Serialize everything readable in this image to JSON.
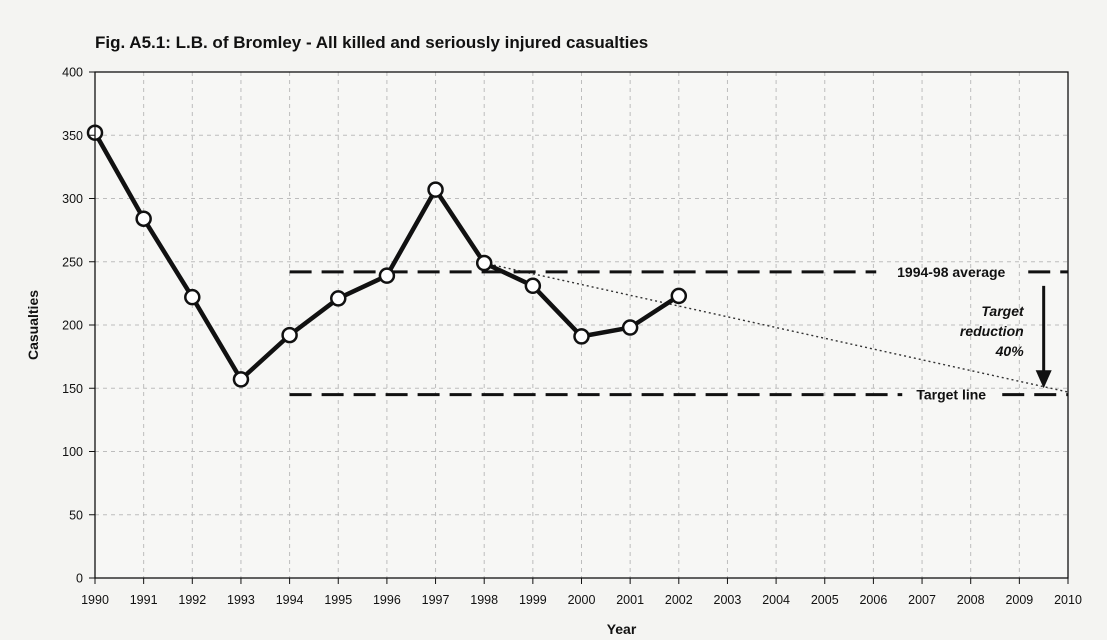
{
  "chart_data": {
    "type": "line",
    "title": "Fig. A5.1: L.B. of Bromley - All killed and seriously injured casualties",
    "xlabel": "Year",
    "ylabel": "Casualties",
    "x": [
      1990,
      1991,
      1992,
      1993,
      1994,
      1995,
      1996,
      1997,
      1998,
      1999,
      2000,
      2001,
      2002,
      2003,
      2004,
      2005,
      2006,
      2007,
      2008,
      2009,
      2010
    ],
    "xlim": [
      1990,
      2010
    ],
    "ylim": [
      0,
      400
    ],
    "yticks": [
      0,
      50,
      100,
      150,
      200,
      250,
      300,
      350,
      400
    ],
    "grid": true,
    "series": [
      {
        "values_x": [
          1990,
          1991,
          1992,
          1993,
          1994,
          1995,
          1996,
          1997,
          1998,
          1999,
          2000,
          2001,
          2002
        ],
        "values_y": [
          352,
          284,
          222,
          157,
          192,
          221,
          239,
          307,
          249,
          231,
          191,
          198,
          223
        ]
      }
    ],
    "reference_lines": [
      {
        "label": "1994-98 average",
        "y": 242,
        "x_start": 1994,
        "x_end": 2010
      },
      {
        "label": "Target line",
        "y": 145,
        "x_start": 1994,
        "x_end": 2010
      }
    ],
    "trend_line": {
      "x": [
        1998,
        2010
      ],
      "y": [
        249,
        147
      ]
    },
    "annotation": {
      "lines": [
        "Target",
        "reduction",
        "40%"
      ],
      "arrow_from_y": 242,
      "arrow_to_y": 150,
      "arrow_x": 2009.5
    }
  }
}
